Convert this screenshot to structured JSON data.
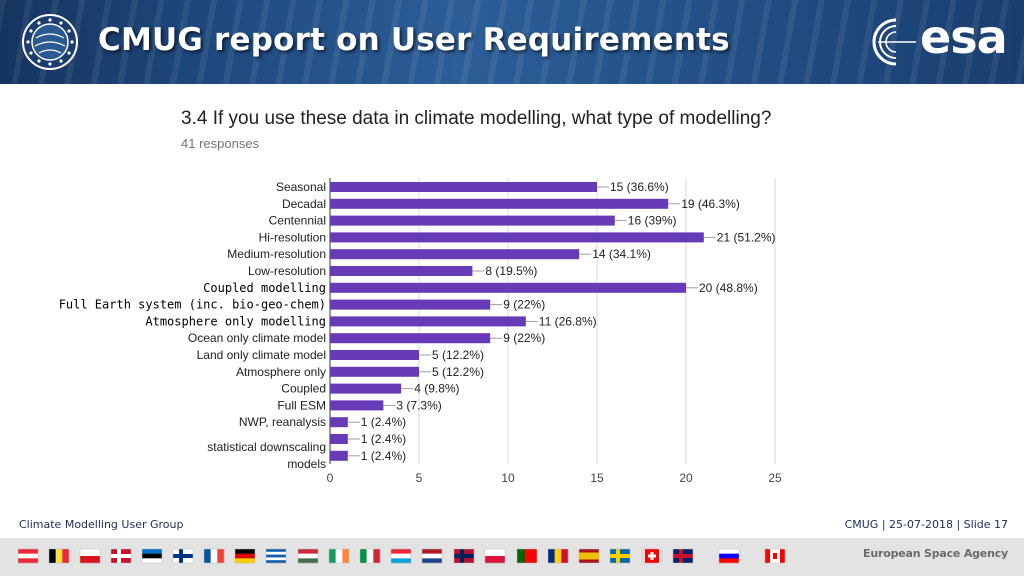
{
  "header": {
    "title": "CMUG report on User Requirements",
    "logo_text": "esa"
  },
  "question": "3.4 If you use these data in climate modelling, what type of modelling?",
  "responses": "41 responses",
  "chart_data": {
    "type": "bar",
    "orientation": "horizontal",
    "bar_color": "#673ab7",
    "categories": [
      "Seasonal",
      "Decadal",
      "Centennial",
      "Hi-resolution",
      "Medium-resolution",
      "Low-resolution",
      "Coupled modelling",
      "Full Earth system (inc. bio-geo-chem)",
      "Atmosphere only modelling",
      "Ocean only climate model",
      "Land only climate model",
      "Atmosphere only",
      "Coupled",
      "Full ESM",
      "NWP, reanalysis",
      "",
      "statistical downscaling models"
    ],
    "values": [
      15,
      19,
      16,
      21,
      14,
      8,
      20,
      9,
      11,
      9,
      5,
      5,
      4,
      3,
      1,
      1,
      1
    ],
    "data_labels": [
      "15 (36.6%)",
      "19 (46.3%)",
      "16 (39%)",
      "21 (51.2%)",
      "14 (34.1%)",
      "8 (19.5%)",
      "20 (48.8%)",
      "9 (22%)",
      "11 (26.8%)",
      "9 (22%)",
      "5 (12.2%)",
      "5 (12.2%)",
      "4 (9.8%)",
      "3 (7.3%)",
      "1 (2.4%)",
      "1 (2.4%)",
      "1 (2.4%)"
    ],
    "xlim": [
      0,
      25
    ],
    "xticks": [
      0,
      5,
      10,
      15,
      20,
      25
    ],
    "grid": true,
    "xlabel": "",
    "ylabel": ""
  },
  "footer": {
    "left": "Climate Modelling User Group",
    "right": "CMUG | 25-07-2018 | Slide  17",
    "agency": "European Space Agency"
  }
}
